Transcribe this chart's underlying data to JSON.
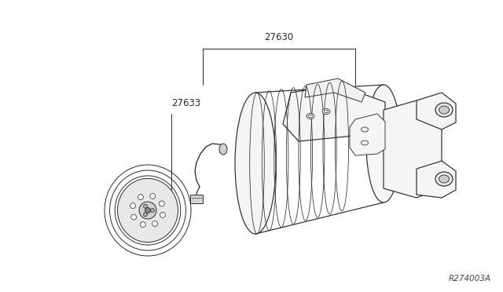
{
  "bg_color": "#ffffff",
  "line_color": "#2a2a2a",
  "label_27630": "27630",
  "label_27633": "27633",
  "diagram_id": "R274003A",
  "lw": 0.85,
  "leader_lw": 0.7
}
